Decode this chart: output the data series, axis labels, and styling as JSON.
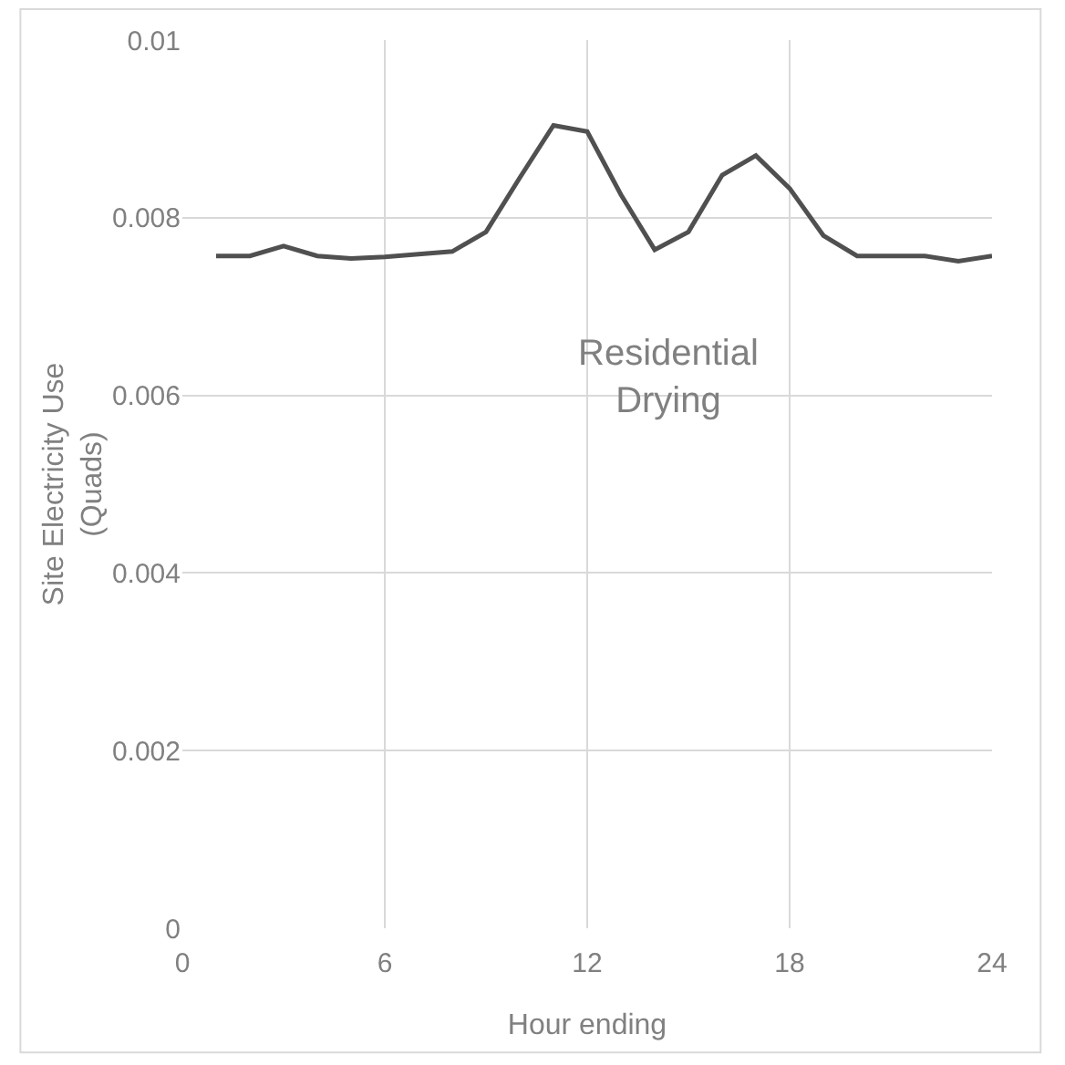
{
  "chart_data": {
    "type": "line",
    "xlabel": "Hour ending",
    "ylabel": "Site Electricity Use\n(Quads)",
    "x": [
      1,
      2,
      3,
      4,
      5,
      6,
      7,
      8,
      9,
      10,
      11,
      12,
      13,
      14,
      15,
      16,
      17,
      18,
      19,
      20,
      21,
      22,
      23,
      24
    ],
    "series": [
      {
        "color": "#505050",
        "values": [
          0.00757,
          0.00757,
          0.00768,
          0.00757,
          0.00754,
          0.00756,
          0.00759,
          0.00762,
          0.00784,
          0.00845,
          0.00904,
          0.00897,
          0.00826,
          0.00764,
          0.00784,
          0.00848,
          0.0087,
          0.00833,
          0.0078,
          0.00757,
          0.00757,
          0.00757,
          0.00751,
          0.00757
        ]
      }
    ],
    "xlim": [
      0,
      24
    ],
    "xticks": [
      0,
      6,
      12,
      18,
      24
    ],
    "ylim": [
      0,
      0.01
    ],
    "yticks": [
      0,
      0.002,
      0.004,
      0.006,
      0.008,
      0.01
    ],
    "grid": true,
    "marker": "none",
    "line_style": "solid",
    "annotations": [
      "Residential\nDrying"
    ]
  }
}
